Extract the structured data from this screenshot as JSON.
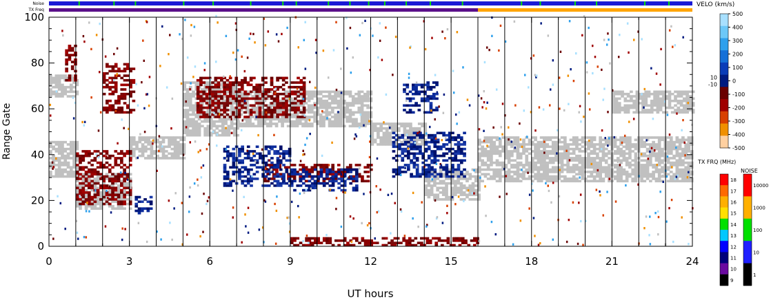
{
  "top_bars": {
    "noise_label": "Noise",
    "txfreq_label": "TX Freq",
    "noise_color": "#1a1ad6",
    "noise_green_marks_ut": [
      1.1,
      2.4,
      3.2,
      5.0,
      6.1,
      7.5,
      8.7,
      9.2,
      10.4,
      11.2,
      11.9,
      12.5,
      13.3,
      14.2,
      15.4,
      17.6,
      18.3,
      19.6,
      20.4,
      22.2,
      23.1
    ],
    "txfreq_color_before": "#5a0f8a",
    "txfreq_color_after": "#ffa500",
    "txfreq_change_ut": 16.0
  },
  "chart_data": {
    "type": "heatmap",
    "xlabel": "UT hours",
    "ylabel": "Range Gate",
    "xlim": [
      0,
      24
    ],
    "ylim": [
      0,
      100
    ],
    "x_ticks": [
      "0",
      "3",
      "6",
      "9",
      "12",
      "15",
      "18",
      "21",
      "24"
    ],
    "y_ticks": [
      "0",
      "20",
      "40",
      "60",
      "80",
      "100"
    ],
    "scan_boundaries_ut": [
      1.0,
      2.0,
      3.0,
      4.0,
      5.0,
      6.0,
      7.0,
      8.0,
      9.0,
      10.0,
      11.0,
      12.0,
      13.0,
      14.0,
      15.0,
      16.0,
      17.0,
      18.0,
      19.0,
      20.0,
      21.0,
      22.0,
      23.0
    ],
    "ground_scatter_color": "#c0c0c0",
    "echo_bands": [
      {
        "kind": "ground",
        "x": [
          0.0,
          1.0
        ],
        "y": [
          30,
          46
        ]
      },
      {
        "kind": "ground",
        "x": [
          0.0,
          1.0
        ],
        "y": [
          65,
          75
        ]
      },
      {
        "kind": "ground",
        "x": [
          1.0,
          3.0
        ],
        "y": [
          16,
          32
        ]
      },
      {
        "kind": "ground",
        "x": [
          3.0,
          5.0
        ],
        "y": [
          38,
          48
        ]
      },
      {
        "kind": "ground",
        "x": [
          5.0,
          7.0
        ],
        "y": [
          48,
          72
        ]
      },
      {
        "kind": "ground",
        "x": [
          7.0,
          12.0
        ],
        "y": [
          52,
          68
        ]
      },
      {
        "kind": "ground",
        "x": [
          12.0,
          14.0
        ],
        "y": [
          44,
          54
        ]
      },
      {
        "kind": "ground",
        "x": [
          14.0,
          16.0
        ],
        "y": [
          20,
          34
        ]
      },
      {
        "kind": "ground",
        "x": [
          16.0,
          24.0
        ],
        "y": [
          28,
          48
        ]
      },
      {
        "kind": "ground",
        "x": [
          21.0,
          24.0
        ],
        "y": [
          58,
          68
        ]
      },
      {
        "kind": "negative",
        "x": [
          0.6,
          1.0
        ],
        "y": [
          72,
          88
        ]
      },
      {
        "kind": "negative",
        "x": [
          1.0,
          3.0
        ],
        "y": [
          18,
          42
        ]
      },
      {
        "kind": "negative",
        "x": [
          2.0,
          3.2
        ],
        "y": [
          58,
          80
        ]
      },
      {
        "kind": "negative",
        "x": [
          5.5,
          9.5
        ],
        "y": [
          56,
          74
        ]
      },
      {
        "kind": "negative",
        "x": [
          8.0,
          12.0
        ],
        "y": [
          28,
          36
        ]
      },
      {
        "kind": "negative",
        "x": [
          9.0,
          16.0
        ],
        "y": [
          0,
          4
        ]
      },
      {
        "kind": "positive",
        "x": [
          6.5,
          9.0
        ],
        "y": [
          26,
          44
        ]
      },
      {
        "kind": "positive",
        "x": [
          9.0,
          11.5
        ],
        "y": [
          24,
          34
        ]
      },
      {
        "kind": "positive",
        "x": [
          12.8,
          15.5
        ],
        "y": [
          30,
          50
        ]
      },
      {
        "kind": "positive",
        "x": [
          3.2,
          3.8
        ],
        "y": [
          14,
          22
        ]
      },
      {
        "kind": "positive",
        "x": [
          13.2,
          14.5
        ],
        "y": [
          58,
          72
        ]
      }
    ],
    "velocity_colorbar": {
      "title": "VELO (km/s)",
      "tick_labels": [
        "500",
        "400",
        "300",
        "200",
        "100",
        "0",
        "-100",
        "-200",
        "-300",
        "-400",
        "-500"
      ],
      "inner_labels": [
        "10",
        "-10"
      ],
      "colors": [
        "#a8e0ff",
        "#6cc8f8",
        "#2ea0ec",
        "#1570d8",
        "#0a3cb8",
        "#001a80",
        "#6a0000",
        "#a00000",
        "#d84000",
        "#f09000",
        "#ffd0a0"
      ]
    },
    "txfreq_colorbar": {
      "title": "TX FRQ (MHz)",
      "tick_labels": [
        "18",
        "17",
        "16",
        "15",
        "14",
        "13",
        "12",
        "11",
        "10",
        "9"
      ],
      "colors": [
        "#ff0000",
        "#ff6a00",
        "#ffb000",
        "#ffe000",
        "#00e000",
        "#00c8ff",
        "#0000ff",
        "#00007a",
        "#6a0aa0",
        "#000000"
      ]
    },
    "noise_colorbar": {
      "title": "NOISE",
      "tick_labels": [
        "10000",
        "1000",
        "100",
        "10",
        "1"
      ],
      "colors": [
        "#ff0000",
        "#ffb000",
        "#00e000",
        "#2020ff",
        "#000000"
      ]
    }
  }
}
